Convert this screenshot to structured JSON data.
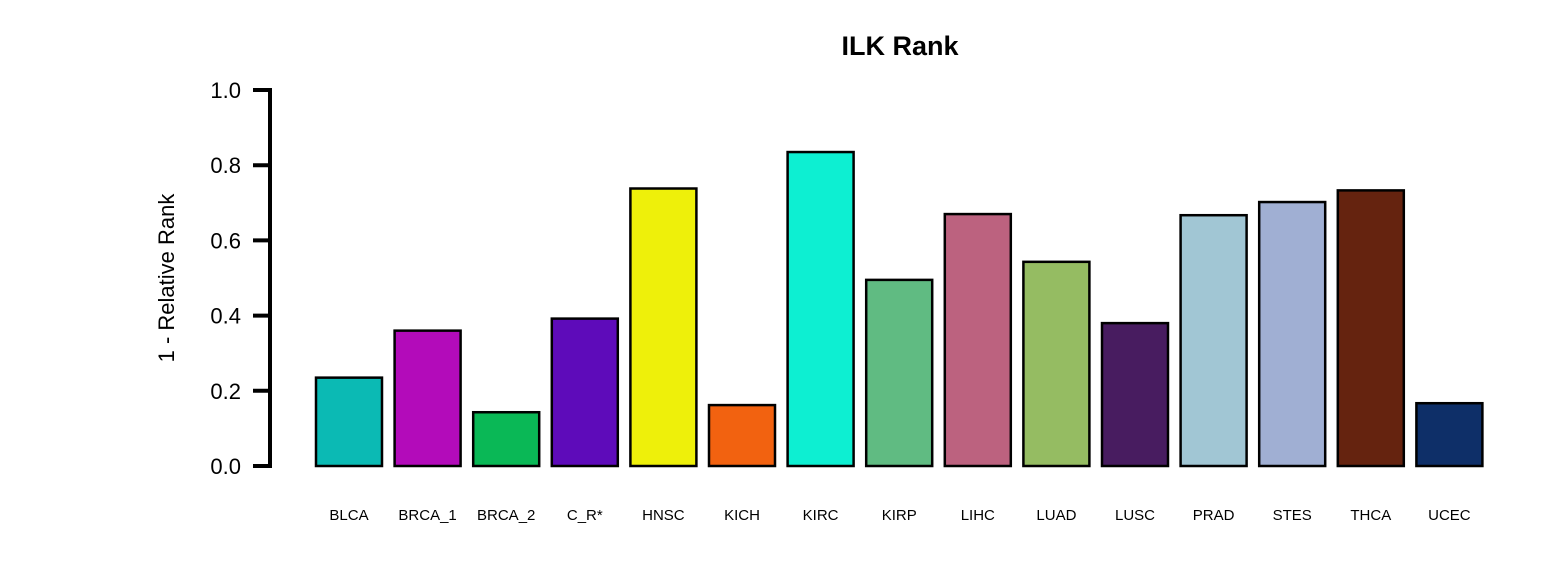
{
  "chart_data": {
    "type": "bar",
    "title": "ILK Rank",
    "xlabel": "",
    "ylabel": "1 - Relative Rank",
    "ylim": [
      0,
      1
    ],
    "yticks": [
      "0.0",
      "0.2",
      "0.4",
      "0.6",
      "0.8",
      "1.0"
    ],
    "ytick_values": [
      0,
      0.2,
      0.4,
      0.6,
      0.8,
      1.0
    ],
    "categories": [
      "BLCA",
      "BRCA_1",
      "BRCA_2",
      "C_R*",
      "HNSC",
      "KICH",
      "KIRC",
      "KIRP",
      "LIHC",
      "LUAD",
      "LUSC",
      "PRAD",
      "STES",
      "THCA",
      "UCEC"
    ],
    "values": [
      0.235,
      0.36,
      0.143,
      0.392,
      0.738,
      0.162,
      0.835,
      0.495,
      0.67,
      0.543,
      0.38,
      0.667,
      0.702,
      0.733,
      0.167
    ],
    "colors": [
      "#0BBAB4",
      "#B30BBA",
      "#0AB856",
      "#5E0BBA",
      "#EEF00A",
      "#F26210",
      "#0DEFD2",
      "#60BB82",
      "#BC627F",
      "#95BC62",
      "#481C60",
      "#A1C6D4",
      "#A0AFD3",
      "#65230F",
      "#0E2F68"
    ],
    "grid": false,
    "legend": "none"
  }
}
